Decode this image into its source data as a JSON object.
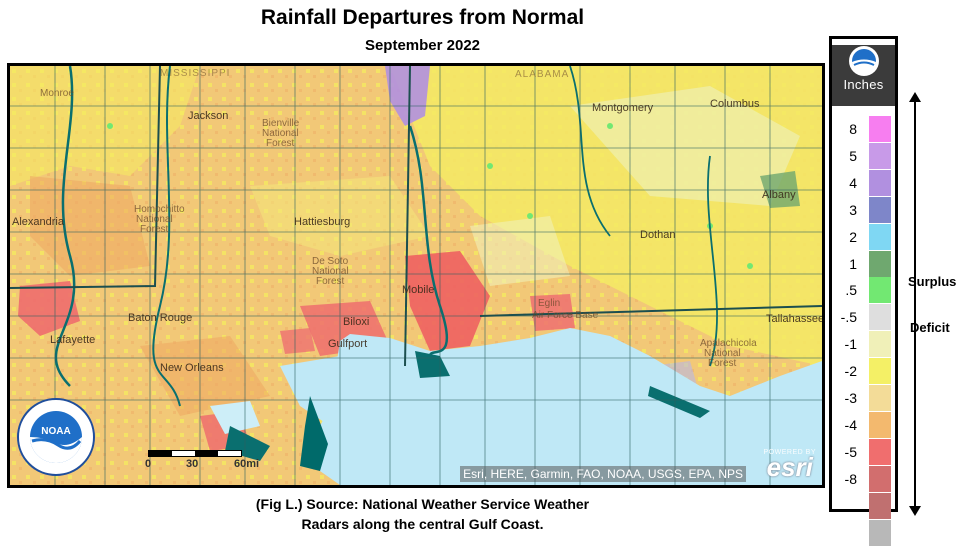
{
  "title": "Rainfall Departures from Normal",
  "subtitle": "September 2022",
  "caption_line1": "(Fig L.) Source: National Weather Service Weather",
  "caption_line2": "Radars along the central Gulf Coast.",
  "map": {
    "attribution": "Esri, HERE, Garmin, FAO, NOAA, USGS, EPA, NPS",
    "esri_powered": "POWERED BY",
    "esri_word": "esri",
    "scale_ticks": [
      "0",
      "30",
      "60mi"
    ],
    "states": [
      {
        "name": "MISSISSIPPI"
      },
      {
        "name": "ALABAMA"
      }
    ],
    "places": [
      {
        "name": "Monroe"
      },
      {
        "name": "Jackson"
      },
      {
        "name": "Bienville"
      },
      {
        "name": "National"
      },
      {
        "name": "Forest"
      },
      {
        "name": "Montgomery"
      },
      {
        "name": "Columbus"
      },
      {
        "name": "Alexandria"
      },
      {
        "name": "Homochitto"
      },
      {
        "name": "National"
      },
      {
        "name": "Forest"
      },
      {
        "name": "Hattiesburg"
      },
      {
        "name": "De Soto"
      },
      {
        "name": "National"
      },
      {
        "name": "Forest"
      },
      {
        "name": "Albany"
      },
      {
        "name": "Dothan"
      },
      {
        "name": "Mobile"
      },
      {
        "name": "Baton Rouge"
      },
      {
        "name": "Biloxi"
      },
      {
        "name": "Gulfport"
      },
      {
        "name": "Eglin"
      },
      {
        "name": "Air Force Base"
      },
      {
        "name": "Tallahassee"
      },
      {
        "name": "Lafayette"
      },
      {
        "name": "New Orleans"
      },
      {
        "name": "Apalachicola"
      },
      {
        "name": "National"
      },
      {
        "name": "Forest"
      }
    ]
  },
  "legend": {
    "units": "Inches",
    "surplus_label": "Surplus",
    "deficit_label": "Deficit",
    "items": [
      {
        "label": "8",
        "color": "#f77ef0"
      },
      {
        "label": "5",
        "color": "#c89ae8"
      },
      {
        "label": "4",
        "color": "#b190e0"
      },
      {
        "label": "3",
        "color": "#7e86c9"
      },
      {
        "label": "2",
        "color": "#7fd7f3"
      },
      {
        "label": "1",
        "color": "#6fa86f"
      },
      {
        "label": ".5",
        "color": "#72e872"
      },
      {
        "label": "-.5",
        "color": "#dedede"
      },
      {
        "label": "-1",
        "color": "#f0f0b8"
      },
      {
        "label": "-2",
        "color": "#f4f066"
      },
      {
        "label": "-3",
        "color": "#f3dc98"
      },
      {
        "label": "-4",
        "color": "#f3b96e"
      },
      {
        "label": "-5",
        "color": "#f06e6e"
      },
      {
        "label": "-8",
        "color": "#d26e6e"
      },
      {
        "label": "",
        "color": "#c07070"
      },
      {
        "label": "",
        "color": "#b8b8b8"
      }
    ]
  }
}
